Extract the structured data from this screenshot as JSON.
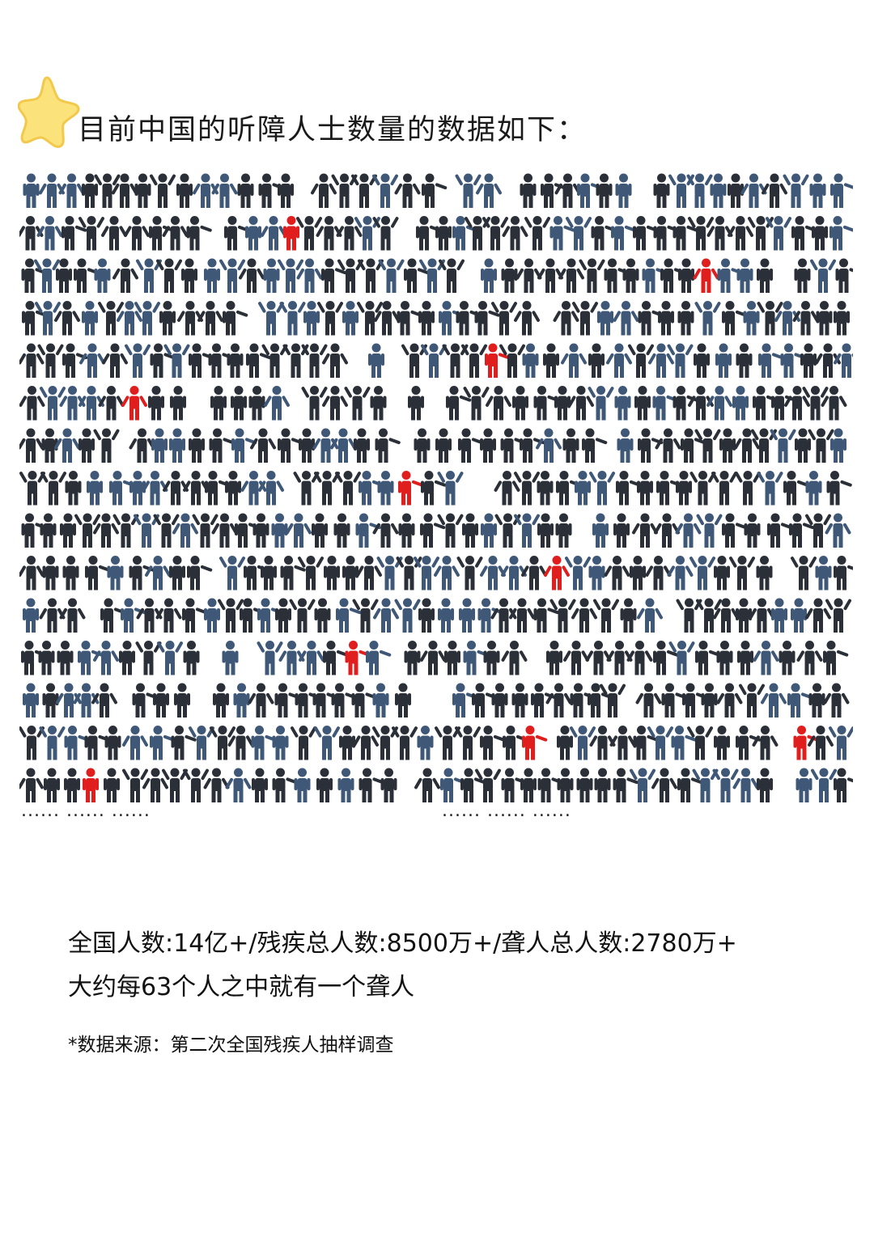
{
  "header": {
    "title": "目前中国的听障人士数量的数据如下：",
    "icon": "star-icon"
  },
  "pictogram": {
    "icon": "person-icon",
    "colors": {
      "dark": "#2b3038",
      "blue": "#3f5878",
      "red": "#e01e1e"
    }
  },
  "ellipsis": {
    "left": "...... ...... ......",
    "right": "...... ...... ......"
  },
  "stats": {
    "line1": "全国人数:14亿+/残疾总人数:8500万+/聋人总人数:2780万+",
    "line2": "大约每63个人之中就有一个聋人"
  },
  "source": "*数据来源：第二次全国残疾人抽样调查"
}
